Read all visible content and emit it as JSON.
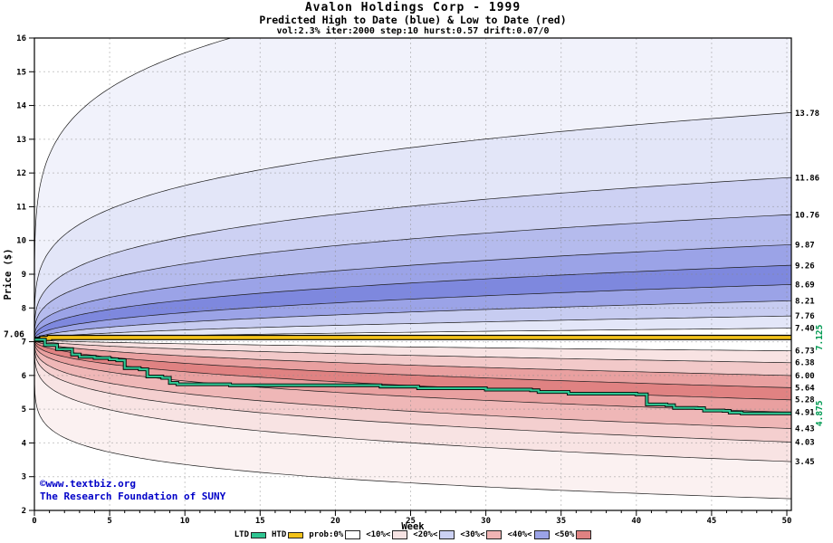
{
  "title": "Avalon Holdings Corp - 1999",
  "subtitle": "Predicted High to Date (blue) &  Low to Date (red)",
  "params_line": "vol:2.3% iter:2000 step:10 hurst:0.57 drift:0.07/0",
  "copyright": {
    "line1": "©www.textbiz.org",
    "line2": "The Research Foundation of SUNY",
    "color": "#0000c8"
  },
  "legend": {
    "items": [
      {
        "label": "LTD",
        "color": "#2fc592",
        "type": "line"
      },
      {
        "label": "HTD",
        "color": "#f2c21a",
        "type": "line"
      },
      {
        "label": "prob:0%",
        "color": "#ffffff",
        "type": "band"
      },
      {
        "label": "<10%<",
        "color": "#f6e3e3",
        "type": "band"
      },
      {
        "label": "<20%<",
        "color": "#ccd1f3",
        "type": "band"
      },
      {
        "label": "<30%<",
        "color": "#f0b4b4",
        "type": "band"
      },
      {
        "label": "<40%<",
        "color": "#9ba3e7",
        "type": "band"
      },
      {
        "label": "<50%",
        "color": "#e08282",
        "type": "band"
      }
    ]
  },
  "chart_data": {
    "type": "area",
    "title": "Avalon Holdings Corp - 1999",
    "xlabel": "Week",
    "ylabel": "Price ($)",
    "xlim": [
      0,
      50.3
    ],
    "ylim": [
      2,
      16
    ],
    "x_ticks": [
      0,
      5,
      10,
      15,
      20,
      25,
      30,
      35,
      40,
      45,
      50
    ],
    "y_ticks": [
      2,
      3,
      4,
      5,
      6,
      7,
      8,
      9,
      10,
      11,
      12,
      13,
      14,
      15,
      16
    ],
    "start_week": 0,
    "start_price": 7.06,
    "start_label": "7.06",
    "grid_color": "#8a8a8a",
    "boundary_line_color": "#1c1c1c",
    "label_green": "#009a52",
    "high_fan": {
      "side": "high",
      "boundaries": [
        {
          "end": 7.4,
          "p": 0.62,
          "label": "7.40"
        },
        {
          "end": 7.76,
          "p": 0.55,
          "label": "7.76"
        },
        {
          "end": 8.21,
          "p": 0.49,
          "label": "8.21"
        },
        {
          "end": 8.69,
          "p": 0.44,
          "label": "8.69"
        },
        {
          "end": 9.26,
          "p": 0.39,
          "label": "9.26"
        },
        {
          "end": 9.87,
          "p": 0.35,
          "label": "9.87"
        },
        {
          "end": 10.76,
          "p": 0.31,
          "label": "10.76"
        },
        {
          "end": 11.86,
          "p": 0.28,
          "label": "11.86"
        },
        {
          "end": 13.78,
          "p": 0.24,
          "label": "13.78"
        },
        {
          "end": 18.6,
          "p": 0.19,
          "label": null
        }
      ],
      "band_colors": [
        "#ffffff",
        "#e3e6f8",
        "#c7ccf1",
        "#9ba3e7",
        "#7e88de",
        "#9ba3e7",
        "#b5bbed",
        "#cdd1f3",
        "#e3e6f8",
        "#f1f2fb"
      ]
    },
    "low_fan": {
      "side": "low",
      "boundaries": [
        {
          "end": 6.73,
          "p": 0.62,
          "label": "6.73"
        },
        {
          "end": 6.38,
          "p": 0.55,
          "label": "6.38"
        },
        {
          "end": 6.0,
          "p": 0.49,
          "label": "6.00"
        },
        {
          "end": 5.64,
          "p": 0.44,
          "label": "5.64"
        },
        {
          "end": 5.28,
          "p": 0.39,
          "label": "5.28"
        },
        {
          "end": 4.91,
          "p": 0.35,
          "label": "4.91"
        },
        {
          "end": 4.43,
          "p": 0.31,
          "label": "4.43"
        },
        {
          "end": 4.03,
          "p": 0.28,
          "label": "4.03"
        },
        {
          "end": 3.45,
          "p": 0.24,
          "label": "3.45"
        },
        {
          "end": 2.35,
          "p": 0.15,
          "label": null
        }
      ],
      "band_colors": [
        "#ffffff",
        "#f8e3e3",
        "#f2c9c9",
        "#e9a0a0",
        "#e08282",
        "#e9a0a0",
        "#efb7b7",
        "#f4cfcf",
        "#f8e3e3",
        "#fbf1f1"
      ]
    },
    "htd": {
      "name": "HTD",
      "color": "#f2c21a",
      "final": 7.125,
      "final_label": "7.125",
      "points": [
        [
          0,
          7.06
        ],
        [
          0.5,
          7.1
        ],
        [
          1,
          7.125
        ],
        [
          50.3,
          7.125
        ]
      ]
    },
    "ltd": {
      "name": "LTD",
      "color": "#2fc592",
      "final": 4.875,
      "final_label": "4.875",
      "points": [
        [
          0,
          7.06
        ],
        [
          0.7,
          6.9
        ],
        [
          1.5,
          6.78
        ],
        [
          2.5,
          6.62
        ],
        [
          3,
          6.55
        ],
        [
          4,
          6.52
        ],
        [
          5,
          6.48
        ],
        [
          5.5,
          6.45
        ],
        [
          6,
          6.22
        ],
        [
          7,
          6.18
        ],
        [
          7.5,
          5.97
        ],
        [
          8.5,
          5.93
        ],
        [
          9,
          5.78
        ],
        [
          9.5,
          5.74
        ],
        [
          12.5,
          5.74
        ],
        [
          13,
          5.71
        ],
        [
          22.5,
          5.71
        ],
        [
          23,
          5.67
        ],
        [
          25,
          5.67
        ],
        [
          25.5,
          5.62
        ],
        [
          29.5,
          5.62
        ],
        [
          30,
          5.58
        ],
        [
          33,
          5.56
        ],
        [
          33.5,
          5.51
        ],
        [
          35,
          5.51
        ],
        [
          35.5,
          5.46
        ],
        [
          40,
          5.44
        ],
        [
          40.7,
          5.14
        ],
        [
          42,
          5.12
        ],
        [
          42.5,
          5.04
        ],
        [
          44,
          5.03
        ],
        [
          44.5,
          4.96
        ],
        [
          45.8,
          4.95
        ],
        [
          46.2,
          4.9
        ],
        [
          47,
          4.875
        ],
        [
          50.3,
          4.875
        ]
      ]
    }
  }
}
